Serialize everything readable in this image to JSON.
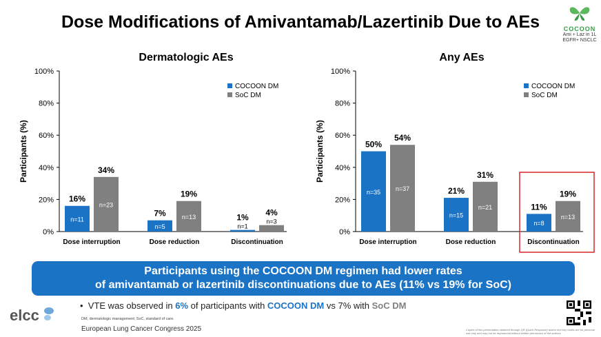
{
  "title": "Dose Modifications of Amivantamab/Lazertinib Due to AEs",
  "logo": {
    "name": "COCOON",
    "line1": "Ami + Laz in 1L",
    "line2": "EGFR+ NSCLC"
  },
  "colors": {
    "cocoon": "#1a73c4",
    "soc": "#808080",
    "highlight": "#d9262b"
  },
  "chart_data": [
    {
      "type": "bar",
      "title": "Dermatologic AEs",
      "ylabel": "Participants (%)",
      "ylim": [
        0,
        100
      ],
      "yticks": [
        "0%",
        "20%",
        "40%",
        "60%",
        "80%",
        "100%"
      ],
      "categories": [
        "Dose interruption",
        "Dose reduction",
        "Discontinuation"
      ],
      "series": [
        {
          "name": "COCOON DM",
          "values": [
            16,
            7,
            1
          ],
          "labels": [
            "16%",
            "7%",
            "1%"
          ],
          "n": [
            "n=11",
            "n=5",
            "n=1"
          ]
        },
        {
          "name": "SoC DM",
          "values": [
            34,
            19,
            4
          ],
          "labels": [
            "34%",
            "19%",
            "4%"
          ],
          "n": [
            "n=23",
            "n=13",
            "n=3"
          ]
        }
      ],
      "legend": "top-right"
    },
    {
      "type": "bar",
      "title": "Any AEs",
      "ylabel": "Participants (%)",
      "ylim": [
        0,
        100
      ],
      "yticks": [
        "0%",
        "20%",
        "40%",
        "60%",
        "80%",
        "100%"
      ],
      "categories": [
        "Dose interruption",
        "Dose reduction",
        "Discontinuation"
      ],
      "series": [
        {
          "name": "COCOON DM",
          "values": [
            50,
            21,
            11
          ],
          "labels": [
            "50%",
            "21%",
            "11%"
          ],
          "n": [
            "n=35",
            "n=15",
            "n=8"
          ]
        },
        {
          "name": "SoC DM",
          "values": [
            54,
            31,
            19
          ],
          "labels": [
            "54%",
            "31%",
            "19%"
          ],
          "n": [
            "n=37",
            "n=21",
            "n=13"
          ]
        }
      ],
      "legend": "top-right",
      "highlight_category": "Discontinuation"
    }
  ],
  "banner": {
    "line1": "Participants using the COCOON DM regimen had lower rates",
    "line2": "of amivantamab or lazertinib discontinuations due to AEs (11% vs 19% for SoC)"
  },
  "bullet": {
    "prefix": "VTE was observed in ",
    "pct1": "6%",
    "mid1": " of participants with ",
    "group1": "COCOON DM",
    "mid2": " vs ",
    "pct2": "7%",
    "mid3": " with ",
    "group2": "SoC DM"
  },
  "footnote": "DM, dermatologic management; SoC, standard of care.",
  "congress": "European Lung Cancer Congress 2025",
  "elcc": "elcc",
  "copyright": "Copies of this presentation obtained through QR (Quick Response) and/or text key codes are for personal use only and may not be reproduced without written permission of the authors."
}
